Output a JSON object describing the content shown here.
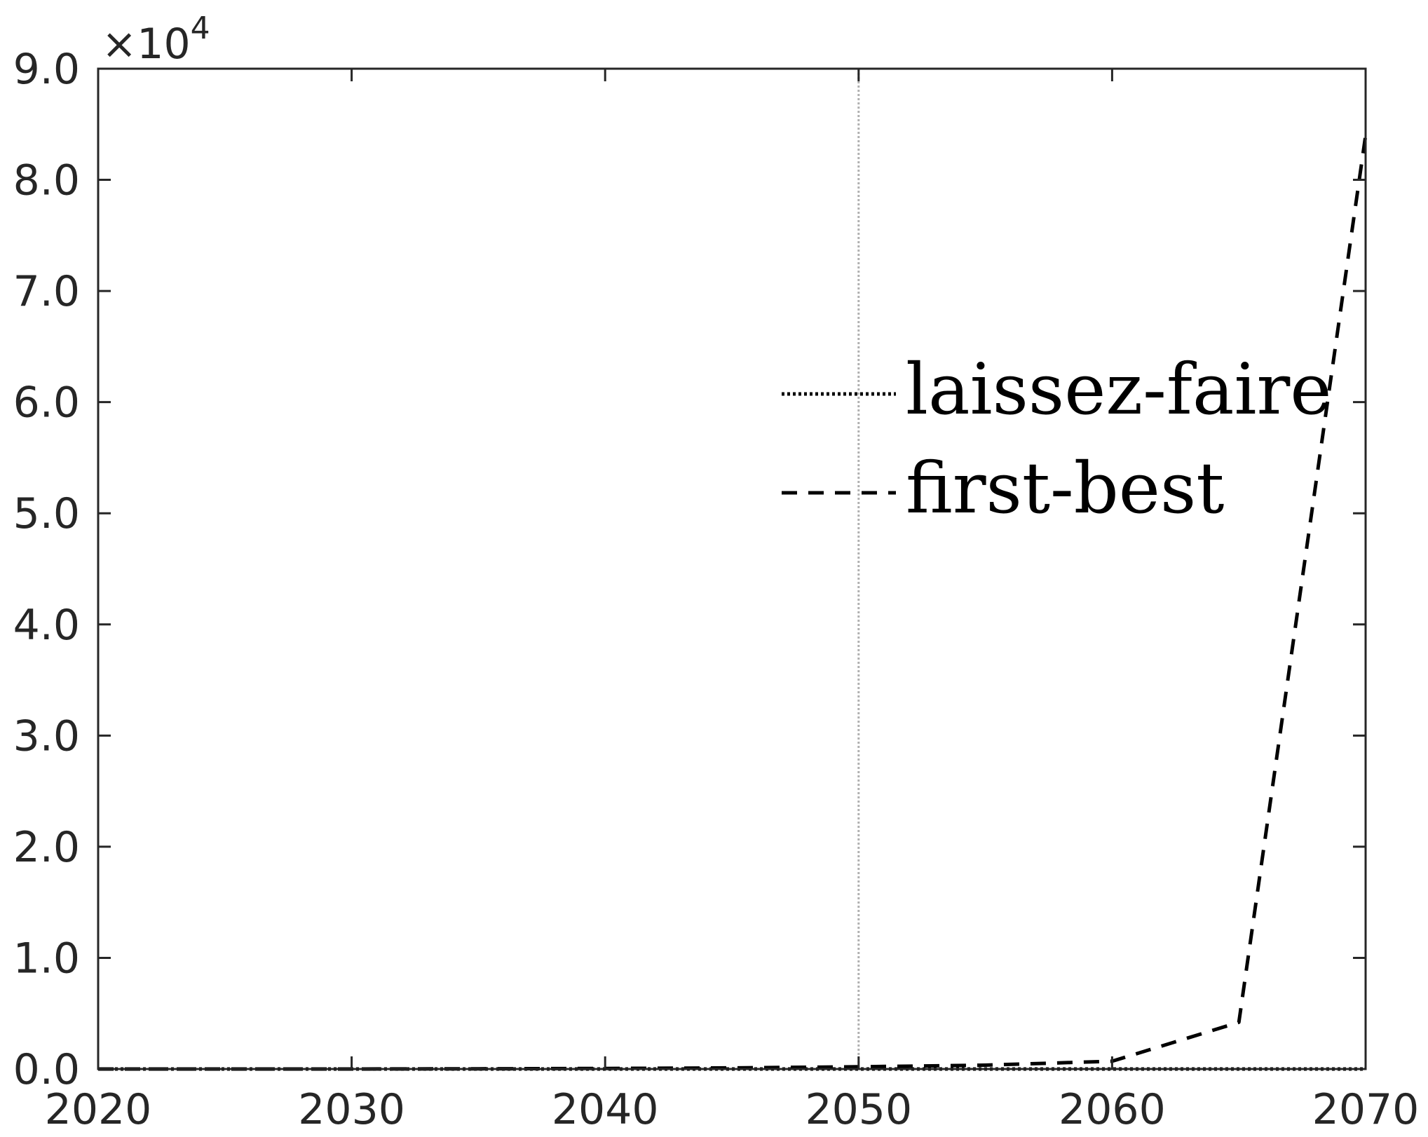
{
  "chart_data": {
    "type": "line",
    "xlim": [
      2020,
      2070
    ],
    "ylim": [
      0,
      90000
    ],
    "x_ticks": [
      2020,
      2030,
      2040,
      2050,
      2060,
      2070
    ],
    "x_tick_labels": [
      "2020",
      "2030",
      "2040",
      "2050",
      "2060",
      "2070"
    ],
    "y_ticks": [
      0,
      10000,
      20000,
      30000,
      40000,
      50000,
      60000,
      70000,
      80000,
      90000
    ],
    "y_tick_labels": [
      "0.0",
      "1.0",
      "2.0",
      "3.0",
      "4.0",
      "5.0",
      "6.0",
      "7.0",
      "8.0",
      "9.0"
    ],
    "y_exponent": {
      "base": "×10",
      "power": "4"
    },
    "vertical_reference_line": {
      "x": 2050,
      "color": "#b0b0b0",
      "style": "dotted"
    },
    "legend_placement": "right-center",
    "grid": false,
    "series": [
      {
        "name": "laissez-faire",
        "line_style": "dotted",
        "color": "#000000",
        "x": [
          2020,
          2025,
          2030,
          2035,
          2040,
          2045,
          2050,
          2055,
          2060,
          2065,
          2070
        ],
        "y": [
          0,
          0,
          0,
          0,
          0,
          0,
          0,
          0,
          0,
          0,
          0
        ]
      },
      {
        "name": "first-best",
        "line_style": "dashed",
        "color": "#000000",
        "x": [
          2020,
          2025,
          2030,
          2035,
          2040,
          2045,
          2050,
          2055,
          2060,
          2065,
          2070
        ],
        "y": [
          0,
          0,
          0,
          20,
          50,
          100,
          200,
          350,
          700,
          4200,
          84000
        ]
      }
    ]
  }
}
